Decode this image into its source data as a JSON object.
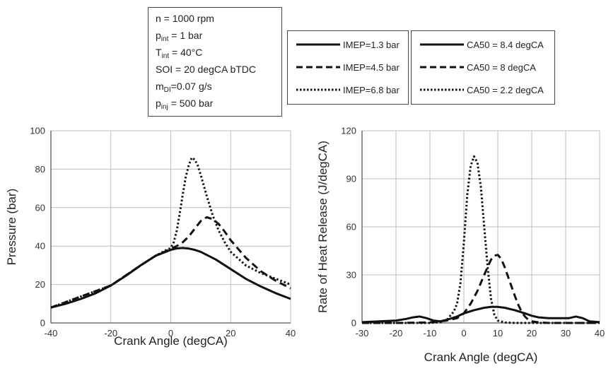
{
  "conditions": {
    "lines": [
      {
        "pre": "n = 1000 rpm",
        "sub": "",
        "post": ""
      },
      {
        "pre": "p",
        "sub": "int",
        "post": " = 1 bar"
      },
      {
        "pre": "T",
        "sub": "int",
        "post": " = 40°C"
      },
      {
        "pre": "SOI = 20 degCA bTDC",
        "sub": "",
        "post": ""
      },
      {
        "pre": "m",
        "sub": "DI",
        "post": "=0.07 g/s"
      },
      {
        "pre": "p",
        "sub": "inj",
        "post": " = 500 bar"
      }
    ]
  },
  "legend_pressure": [
    {
      "label": "IMEP=1.3 bar",
      "style": "solid"
    },
    {
      "label": "IMEP=4.5 bar",
      "style": "dashed"
    },
    {
      "label": "IMEP=6.8 bar",
      "style": "dotted"
    }
  ],
  "legend_hrr": [
    {
      "label": "CA50 = 8.4 degCA",
      "style": "solid"
    },
    {
      "label": "CA50 = 8 degCA",
      "style": "dashed"
    },
    {
      "label": "CA50 = 2.2 degCA",
      "style": "dotted"
    }
  ],
  "colors": {
    "line": "#111111",
    "grid": "#bdbdbd",
    "axis": "#555555"
  },
  "chart_data": [
    {
      "type": "line",
      "xlabel": "Crank Angle (degCA)",
      "ylabel": "Pressure (bar)",
      "xlim": [
        -40,
        40
      ],
      "ylim": [
        0,
        100
      ],
      "xticks": [
        -40,
        -20,
        0,
        20,
        40
      ],
      "yticks": [
        0,
        20,
        40,
        60,
        80,
        100
      ],
      "grid": true,
      "series": [
        {
          "name": "IMEP=1.3 bar",
          "style": "solid",
          "x": [
            -40,
            -35,
            -30,
            -25,
            -20,
            -15,
            -10,
            -5,
            0,
            2,
            4,
            6,
            8,
            10,
            15,
            20,
            25,
            30,
            35,
            40
          ],
          "y": [
            8,
            10,
            12.5,
            15.5,
            19.5,
            24.5,
            30,
            35,
            38,
            38.8,
            39,
            38.7,
            38,
            37,
            33,
            28,
            23,
            19,
            15.5,
            12.5
          ]
        },
        {
          "name": "IMEP=4.5 bar",
          "style": "dashed",
          "x": [
            -40,
            -20,
            -10,
            -5,
            0,
            2,
            4,
            6,
            8,
            10,
            12,
            14,
            16,
            18,
            20,
            25,
            30,
            35,
            40
          ],
          "y": [
            8,
            19.5,
            30,
            35,
            38.5,
            40,
            42,
            45,
            49,
            53,
            55,
            54,
            51.5,
            47.5,
            43,
            34,
            27,
            22,
            18
          ]
        },
        {
          "name": "IMEP=6.8 bar",
          "style": "dotted",
          "x": [
            -40,
            -20,
            -10,
            -5,
            -2,
            0,
            1,
            2,
            3,
            4,
            5,
            6,
            7,
            8,
            9,
            10,
            12,
            14,
            16,
            18,
            20,
            25,
            30,
            35,
            40
          ],
          "y": [
            8,
            19.5,
            30,
            35,
            37.5,
            39,
            42,
            48,
            57,
            67,
            76,
            82,
            86,
            85,
            82,
            77,
            66,
            56,
            48,
            42,
            37,
            30,
            26,
            23,
            20
          ]
        }
      ]
    },
    {
      "type": "line",
      "xlabel": "Crank Angle (degCA)",
      "ylabel": "Rate of Heat Release (J/degCA)",
      "xlim": [
        -30,
        40
      ],
      "ylim": [
        0,
        120
      ],
      "xticks": [
        -30,
        -20,
        -10,
        0,
        10,
        20,
        30,
        40
      ],
      "yticks": [
        0,
        30,
        60,
        90,
        120
      ],
      "grid": true,
      "series": [
        {
          "name": "CA50 = 8.4 degCA",
          "style": "solid",
          "x": [
            -30,
            -25,
            -20,
            -17,
            -15,
            -13,
            -11,
            -9,
            -7,
            -5,
            -2,
            0,
            3,
            6,
            8,
            10,
            12,
            15,
            18,
            20,
            22,
            25,
            28,
            31,
            33,
            35,
            37,
            40
          ],
          "y": [
            0.5,
            1,
            1.5,
            2.5,
            3.5,
            4,
            3,
            1.5,
            1,
            2,
            4,
            6,
            8,
            9.5,
            10,
            10,
            9.5,
            8,
            6,
            4.5,
            3.5,
            3,
            3,
            3,
            4,
            3,
            1,
            0.5
          ]
        },
        {
          "name": "CA50 = 8 degCA",
          "style": "dashed",
          "x": [
            -30,
            -20,
            -10,
            -5,
            -2,
            0,
            2,
            4,
            6,
            7,
            8,
            9,
            10,
            11,
            12,
            13,
            14,
            15,
            16,
            17,
            18,
            19,
            20,
            22,
            25,
            30,
            35,
            40
          ],
          "y": [
            0,
            0,
            0.3,
            1.5,
            3,
            6,
            12,
            20,
            30,
            35,
            39.5,
            42,
            42.5,
            40,
            35,
            29,
            23,
            17,
            11.5,
            7,
            4,
            2,
            1,
            0.4,
            0,
            0,
            0,
            0
          ]
        },
        {
          "name": "CA50 = 2.2 degCA",
          "style": "dotted",
          "x": [
            -30,
            -10,
            -7,
            -5,
            -3,
            -2,
            -1,
            0,
            1,
            2,
            3,
            4,
            5,
            6,
            7,
            8,
            9,
            10,
            12,
            15,
            20,
            30,
            40
          ],
          "y": [
            0,
            0,
            0.5,
            2,
            7,
            12,
            25,
            50,
            80,
            98,
            104,
            100,
            85,
            60,
            35,
            15,
            5,
            1.5,
            0.3,
            0,
            0,
            0,
            0
          ]
        }
      ]
    }
  ]
}
